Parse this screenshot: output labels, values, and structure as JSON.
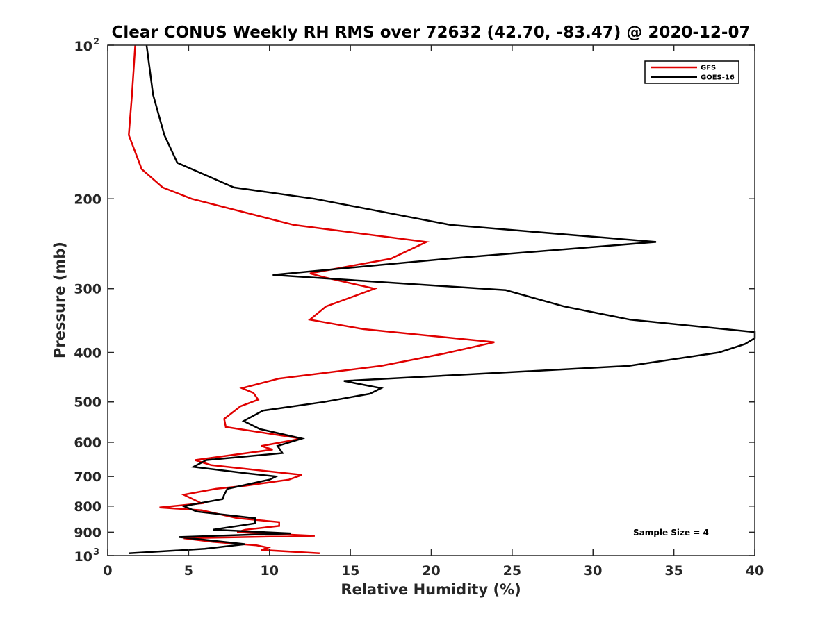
{
  "chart_data": {
    "type": "line",
    "title": "Clear CONUS Weekly RH RMS over 72632 (42.70, -83.47) @ 2020-12-07",
    "xlabel": "Relative Humidity (%)",
    "ylabel": "Pressure (mb)",
    "xlim": [
      0,
      40
    ],
    "ylim": [
      1000,
      100
    ],
    "y_scale": "log",
    "y_reversed": true,
    "grid": false,
    "legend_position": "top-right",
    "x_ticks": [
      "0",
      "5",
      "10",
      "15",
      "20",
      "25",
      "30",
      "35",
      "40"
    ],
    "y_ticks": [
      {
        "value": 100,
        "base": "10",
        "exp": "2"
      },
      {
        "value": 200,
        "label": "200"
      },
      {
        "value": 300,
        "label": "300"
      },
      {
        "value": 400,
        "label": "400"
      },
      {
        "value": 500,
        "label": "500"
      },
      {
        "value": 600,
        "label": "600"
      },
      {
        "value": 700,
        "label": "700"
      },
      {
        "value": 800,
        "label": "800"
      },
      {
        "value": 900,
        "label": "900"
      },
      {
        "value": 1000,
        "base": "10",
        "exp": "3"
      }
    ],
    "annotation": "Sample Size = 4",
    "series": [
      {
        "name": "GFS",
        "color": "#e00000",
        "points": [
          [
            1.7,
            100
          ],
          [
            1.5,
            125
          ],
          [
            1.3,
            150
          ],
          [
            2.1,
            175
          ],
          [
            3.4,
            190
          ],
          [
            5.2,
            200
          ],
          [
            11.5,
            225
          ],
          [
            19.7,
            243
          ],
          [
            17.5,
            262
          ],
          [
            12.5,
            280
          ],
          [
            13.4,
            285
          ],
          [
            16.5,
            300
          ],
          [
            13.5,
            325
          ],
          [
            12.5,
            345
          ],
          [
            15.8,
            360
          ],
          [
            23.9,
            382
          ],
          [
            20.8,
            402
          ],
          [
            16.9,
            425
          ],
          [
            10.6,
            450
          ],
          [
            8.3,
            470
          ],
          [
            9.0,
            480
          ],
          [
            9.3,
            495
          ],
          [
            8.2,
            510
          ],
          [
            7.2,
            540
          ],
          [
            7.3,
            560
          ],
          [
            12.0,
            590
          ],
          [
            9.5,
            610
          ],
          [
            10.2,
            620
          ],
          [
            5.4,
            650
          ],
          [
            6.4,
            665
          ],
          [
            12.0,
            695
          ],
          [
            11.2,
            710
          ],
          [
            8.5,
            730
          ],
          [
            6.7,
            740
          ],
          [
            4.7,
            760
          ],
          [
            5.8,
            790
          ],
          [
            3.2,
            805
          ],
          [
            5.8,
            815
          ],
          [
            8.0,
            845
          ],
          [
            10.6,
            860
          ],
          [
            10.6,
            875
          ],
          [
            8.5,
            890
          ],
          [
            8.0,
            900
          ],
          [
            12.8,
            915
          ],
          [
            4.7,
            925
          ],
          [
            6.5,
            940
          ],
          [
            8.3,
            950
          ],
          [
            9.2,
            955
          ],
          [
            9.9,
            965
          ],
          [
            9.5,
            975
          ],
          [
            13.1,
            990
          ]
        ]
      },
      {
        "name": "GOES-16",
        "color": "#000000",
        "points": [
          [
            2.4,
            100
          ],
          [
            2.8,
            125
          ],
          [
            3.5,
            150
          ],
          [
            4.3,
            170
          ],
          [
            7.8,
            190
          ],
          [
            12.8,
            200
          ],
          [
            21.2,
            225
          ],
          [
            33.9,
            243
          ],
          [
            21.0,
            262
          ],
          [
            10.2,
            282
          ],
          [
            24.6,
            302
          ],
          [
            28.2,
            325
          ],
          [
            32.3,
            345
          ],
          [
            40.0,
            365
          ],
          [
            40.0,
            375
          ],
          [
            39.4,
            385
          ],
          [
            37.8,
            400
          ],
          [
            32.2,
            425
          ],
          [
            14.6,
            455
          ],
          [
            16.9,
            470
          ],
          [
            16.2,
            482
          ],
          [
            13.4,
            500
          ],
          [
            9.6,
            520
          ],
          [
            8.4,
            545
          ],
          [
            9.4,
            565
          ],
          [
            12.0,
            590
          ],
          [
            10.5,
            610
          ],
          [
            10.8,
            630
          ],
          [
            6.1,
            650
          ],
          [
            5.3,
            670
          ],
          [
            8.6,
            690
          ],
          [
            10.4,
            700
          ],
          [
            10.0,
            710
          ],
          [
            7.4,
            740
          ],
          [
            7.2,
            760
          ],
          [
            7.1,
            775
          ],
          [
            4.7,
            800
          ],
          [
            5.5,
            820
          ],
          [
            9.1,
            845
          ],
          [
            9.1,
            865
          ],
          [
            6.5,
            890
          ],
          [
            11.3,
            905
          ],
          [
            4.4,
            920
          ],
          [
            8.5,
            950
          ],
          [
            6.0,
            970
          ],
          [
            1.3,
            990
          ]
        ]
      }
    ]
  }
}
